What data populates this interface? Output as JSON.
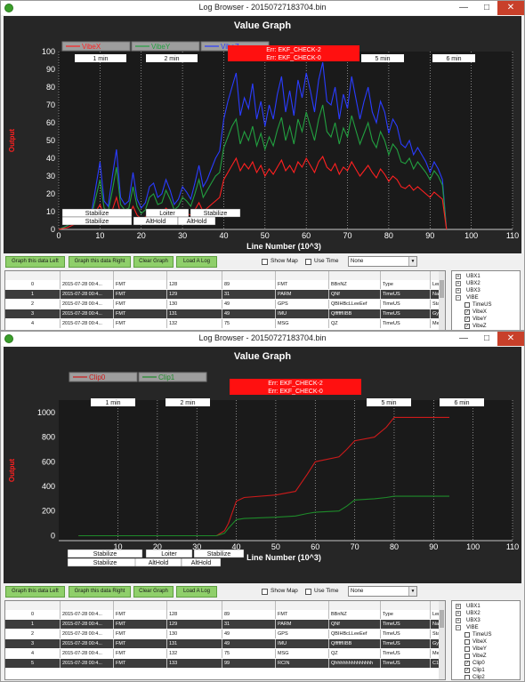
{
  "windows": [
    {
      "title": "Log Browser - 20150727183704.bin",
      "chart_data": {
        "type": "line",
        "title": "Value Graph",
        "xlabel": "Line Number (10^3)",
        "ylabel": "Output",
        "xlim": [
          0,
          110
        ],
        "ylim": [
          0,
          100
        ],
        "x_ticks": [
          0,
          10,
          20,
          30,
          40,
          50,
          60,
          70,
          80,
          90,
          100,
          110
        ],
        "y_ticks": [
          0,
          10,
          20,
          30,
          40,
          50,
          60,
          70,
          80,
          90,
          100
        ],
        "series": [
          {
            "name": "VibeX",
            "color": "#ff2020",
            "x": [
              0,
              2,
              4,
              6,
              8,
              9,
              10,
              11,
              12,
              13,
              14,
              15,
              16,
              17,
              18,
              19,
              20,
              21,
              22,
              23,
              24,
              25,
              26,
              27,
              28,
              29,
              30,
              31,
              32,
              33,
              34,
              35,
              36,
              37,
              38,
              39,
              40,
              41,
              42,
              43,
              44,
              45,
              46,
              47,
              48,
              49,
              50,
              51,
              52,
              53,
              54,
              55,
              56,
              57,
              58,
              59,
              60,
              61,
              62,
              63,
              64,
              65,
              66,
              67,
              68,
              69,
              70,
              71,
              72,
              73,
              74,
              75,
              76,
              77,
              78,
              79,
              80,
              81,
              82,
              83,
              84,
              85,
              86,
              87,
              88,
              89,
              90,
              91,
              92,
              93,
              94
            ],
            "y": [
              0,
              1,
              3,
              4,
              5,
              10,
              14,
              7,
              6,
              11,
              18,
              9,
              7,
              8,
              13,
              8,
              6,
              7,
              10,
              11,
              8,
              9,
              12,
              10,
              7,
              8,
              10,
              9,
              8,
              11,
              15,
              10,
              12,
              14,
              16,
              18,
              28,
              32,
              36,
              40,
              33,
              37,
              34,
              38,
              32,
              36,
              30,
              34,
              31,
              35,
              39,
              33,
              36,
              32,
              38,
              35,
              40,
              36,
              32,
              38,
              41,
              35,
              33,
              37,
              31,
              35,
              33,
              38,
              34,
              30,
              33,
              36,
              32,
              29,
              34,
              31,
              27,
              30,
              28,
              24,
              23,
              25,
              22,
              24,
              22,
              20,
              18,
              21,
              19,
              17,
              0
            ]
          },
          {
            "name": "VibeY",
            "color": "#22a040",
            "x": [
              0,
              2,
              4,
              6,
              8,
              9,
              10,
              11,
              12,
              13,
              14,
              15,
              16,
              17,
              18,
              19,
              20,
              21,
              22,
              23,
              24,
              25,
              26,
              27,
              28,
              29,
              30,
              31,
              32,
              33,
              34,
              35,
              36,
              37,
              38,
              39,
              40,
              41,
              42,
              43,
              44,
              45,
              46,
              47,
              48,
              49,
              50,
              51,
              52,
              53,
              54,
              55,
              56,
              57,
              58,
              59,
              60,
              61,
              62,
              63,
              64,
              65,
              66,
              67,
              68,
              69,
              70,
              71,
              72,
              73,
              74,
              75,
              76,
              77,
              78,
              79,
              80,
              81,
              82,
              83,
              84,
              85,
              86,
              87,
              88,
              89,
              90,
              91,
              92,
              93,
              94
            ],
            "y": [
              0,
              2,
              5,
              6,
              8,
              18,
              28,
              12,
              10,
              22,
              35,
              14,
              11,
              12,
              24,
              13,
              9,
              11,
              18,
              20,
              14,
              15,
              22,
              17,
              11,
              13,
              18,
              16,
              13,
              20,
              28,
              18,
              22,
              26,
              30,
              32,
              46,
              52,
              58,
              62,
              48,
              55,
              50,
              58,
              47,
              54,
              45,
              52,
              47,
              56,
              63,
              50,
              58,
              48,
              62,
              55,
              66,
              58,
              50,
              62,
              70,
              55,
              52,
              60,
              48,
              57,
              52,
              64,
              56,
              48,
              54,
              60,
              50,
              46,
              55,
              50,
              42,
              48,
              45,
              38,
              37,
              40,
              34,
              38,
              35,
              32,
              28,
              33,
              30,
              25,
              0
            ]
          },
          {
            "name": "VibeZ",
            "color": "#2a3cff",
            "x": [
              0,
              2,
              4,
              6,
              8,
              9,
              10,
              11,
              12,
              13,
              14,
              15,
              16,
              17,
              18,
              19,
              20,
              21,
              22,
              23,
              24,
              25,
              26,
              27,
              28,
              29,
              30,
              31,
              32,
              33,
              34,
              35,
              36,
              37,
              38,
              39,
              40,
              41,
              42,
              43,
              44,
              45,
              46,
              47,
              48,
              49,
              50,
              51,
              52,
              53,
              54,
              55,
              56,
              57,
              58,
              59,
              60,
              61,
              62,
              63,
              64,
              65,
              66,
              67,
              68,
              69,
              70,
              71,
              72,
              73,
              74,
              75,
              76,
              77,
              78,
              79,
              80,
              81,
              82,
              83,
              84,
              85,
              86,
              87,
              88,
              89,
              90,
              91,
              92,
              93,
              94
            ],
            "y": [
              0,
              2,
              6,
              8,
              10,
              24,
              38,
              16,
              13,
              30,
              45,
              18,
              14,
              16,
              32,
              17,
              12,
              15,
              24,
              26,
              18,
              20,
              28,
              22,
              14,
              17,
              24,
              21,
              17,
              26,
              36,
              24,
              28,
              34,
              40,
              44,
              62,
              72,
              80,
              88,
              64,
              74,
              68,
              82,
              62,
              72,
              58,
              70,
              62,
              76,
              86,
              66,
              78,
              64,
              84,
              74,
              88,
              78,
              66,
              84,
              94,
              72,
              70,
              80,
              62,
              76,
              68,
              86,
              74,
              62,
              72,
              80,
              66,
              60,
              72,
              66,
              54,
              62,
              58,
              48,
              46,
              50,
              42,
              46,
              42,
              38,
              32,
              38,
              34,
              28,
              0
            ]
          }
        ]
      },
      "time_markers": [
        "1 min",
        "2 min",
        "5 min",
        "6 min"
      ],
      "errors": [
        "Err: EKF_CHECK-2",
        "Err: EKF_CHECK-0"
      ],
      "modes_top": [
        "Stabilize",
        "Loiter",
        "Stabilize"
      ],
      "modes_bottom": [
        "Stabilize",
        "AltHold",
        "AltHold"
      ],
      "tree": [
        {
          "label": "UBX1",
          "kind": "expand",
          "sign": "+",
          "level": 0
        },
        {
          "label": "UBX2",
          "kind": "expand",
          "sign": "+",
          "level": 0
        },
        {
          "label": "UBX3",
          "kind": "expand",
          "sign": "+",
          "level": 0
        },
        {
          "label": "VIBE",
          "kind": "expand",
          "sign": "−",
          "level": 0
        },
        {
          "label": "TimeUS",
          "kind": "check",
          "checked": false,
          "level": 1
        },
        {
          "label": "VibeX",
          "kind": "check",
          "checked": true,
          "level": 1
        },
        {
          "label": "VibeY",
          "kind": "check",
          "checked": true,
          "level": 1
        },
        {
          "label": "VibeZ",
          "kind": "check",
          "checked": true,
          "level": 1
        }
      ]
    },
    {
      "title": "Log Browser - 20150727183704.bin",
      "chart_data": {
        "type": "line",
        "title": "Value Graph",
        "xlabel": "Line Number (10^3)",
        "ylabel": "Output",
        "xlim": [
          -5,
          110
        ],
        "ylim": [
          -40,
          1100
        ],
        "x_ticks": [
          10,
          20,
          30,
          40,
          50,
          60,
          70,
          80,
          90,
          100,
          110
        ],
        "y_ticks": [
          0,
          200,
          400,
          600,
          800,
          1000
        ],
        "series": [
          {
            "name": "Clip0",
            "color": "#cc1a1a",
            "x": [
              0,
              10,
              20,
              30,
              35,
              37,
              38,
              40,
              42,
              50,
              55,
              58,
              60,
              66,
              68,
              70,
              75,
              78,
              80,
              94
            ],
            "y": [
              0,
              0,
              0,
              0,
              0,
              40,
              100,
              280,
              310,
              330,
              360,
              500,
              600,
              640,
              700,
              770,
              800,
              880,
              960,
              960
            ]
          },
          {
            "name": "Clip1",
            "color": "#1e8a2a",
            "x": [
              0,
              10,
              20,
              30,
              35,
              37,
              38,
              40,
              42,
              50,
              55,
              58,
              60,
              66,
              68,
              70,
              75,
              78,
              80,
              94
            ],
            "y": [
              0,
              0,
              0,
              0,
              0,
              20,
              60,
              130,
              140,
              150,
              160,
              180,
              190,
              200,
              240,
              290,
              300,
              310,
              320,
              320
            ]
          }
        ]
      },
      "time_markers": [
        "1 min",
        "2 min",
        "5 min",
        "6 min"
      ],
      "errors": [
        "Err: EKF_CHECK-2",
        "Err: EKF_CHECK-0"
      ],
      "modes_top": [
        "Stabilize",
        "Loiter",
        "Stabilize"
      ],
      "modes_bottom": [
        "Stabilize",
        "AltHold",
        "AltHold"
      ],
      "tree": [
        {
          "label": "UBX1",
          "kind": "expand",
          "sign": "+",
          "level": 0
        },
        {
          "label": "UBX2",
          "kind": "expand",
          "sign": "+",
          "level": 0
        },
        {
          "label": "UBX3",
          "kind": "expand",
          "sign": "+",
          "level": 0
        },
        {
          "label": "VIBE",
          "kind": "expand",
          "sign": "−",
          "level": 0
        },
        {
          "label": "TimeUS",
          "kind": "check",
          "checked": false,
          "level": 1
        },
        {
          "label": "VibeX",
          "kind": "check",
          "checked": false,
          "level": 1
        },
        {
          "label": "VibeY",
          "kind": "check",
          "checked": false,
          "level": 1
        },
        {
          "label": "VibeZ",
          "kind": "check",
          "checked": false,
          "level": 1
        },
        {
          "label": "Clip0",
          "kind": "check",
          "checked": true,
          "level": 1
        },
        {
          "label": "Clip1",
          "kind": "check",
          "checked": true,
          "level": 1
        },
        {
          "label": "Clip2",
          "kind": "check",
          "checked": false,
          "level": 1
        }
      ]
    }
  ],
  "toolbar": {
    "graph_left": "Graph this data Left",
    "graph_right": "Graph this data Right",
    "clear_graph": "Clear Graph",
    "load_log": "Load A Log",
    "show_map": "Show Map",
    "use_time": "Use Time",
    "select_value": "None"
  },
  "grid_rows": [
    [
      "0",
      "2015-07-28 00:4...",
      "FMT",
      "128",
      "89",
      "FMT",
      "BBnNZ",
      "Type",
      "Len"
    ],
    [
      "1",
      "2015-07-28 00:4...",
      "FMT",
      "129",
      "31",
      "PARM",
      "QNf",
      "TimeUS",
      "Nam"
    ],
    [
      "2",
      "2015-07-28 00:4...",
      "FMT",
      "130",
      "49",
      "GPS",
      "QBIHBcLLeeEef",
      "TimeUS",
      "Stat"
    ],
    [
      "3",
      "2015-07-28 00:4...",
      "FMT",
      "131",
      "49",
      "IMU",
      "QffffffIIBB",
      "TimeUS",
      "Gyr"
    ],
    [
      "4",
      "2015-07-28 00:4...",
      "FMT",
      "132",
      "75",
      "MSG",
      "QZ",
      "TimeUS",
      "Mes"
    ],
    [
      "5",
      "2015-07-28 00:4...",
      "FMT",
      "133",
      "99",
      "RCIN",
      "Qhhhhhhhhhhhhhh",
      "TimeUS",
      "C1"
    ]
  ],
  "window_buttons": {
    "minimize": "—",
    "maximize": "□",
    "close": "✕"
  }
}
